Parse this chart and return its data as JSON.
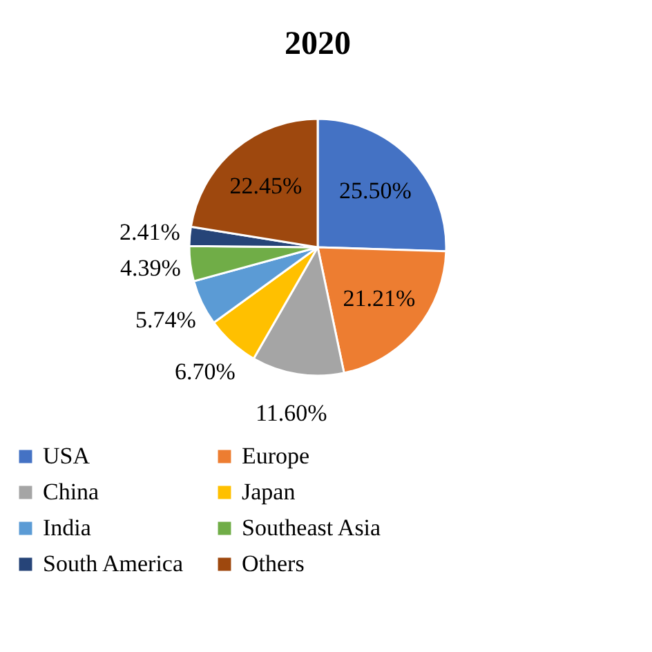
{
  "chart_data": {
    "type": "pie",
    "title": "2020",
    "categories": [
      "USA",
      "Europe",
      "China",
      "Japan",
      "India",
      "Southeast Asia",
      "South America",
      "Others"
    ],
    "values": [
      25.5,
      21.21,
      11.6,
      6.7,
      5.74,
      4.39,
      2.41,
      22.45
    ],
    "value_labels": [
      "25.50%",
      "21.21%",
      "11.60%",
      "6.70%",
      "5.74%",
      "4.39%",
      "2.41%",
      "22.45%"
    ],
    "colors": [
      "#4472c4",
      "#ed7d31",
      "#a5a5a5",
      "#ffc000",
      "#5b9bd5",
      "#70ad47",
      "#264478",
      "#9e480e"
    ],
    "legend": "bottom"
  }
}
